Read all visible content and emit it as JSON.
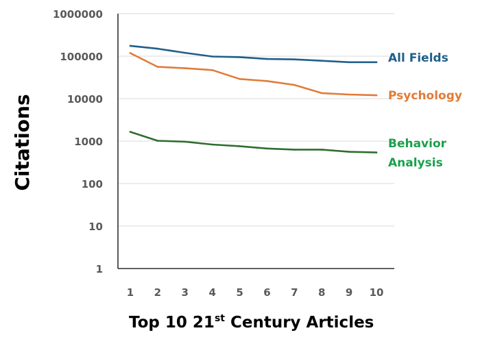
{
  "chart_data": {
    "type": "line",
    "title": "",
    "xlabel": {
      "main": "Top 10 21",
      "superscript": "st",
      "rest": " Century Articles"
    },
    "ylabel": "Citations",
    "y_scale": "log",
    "ylim": [
      1,
      1000000
    ],
    "y_ticks": [
      "1000000",
      "100000",
      "10000",
      "1000",
      "100",
      "10",
      "1"
    ],
    "x": [
      "1",
      "2",
      "3",
      "4",
      "5",
      "6",
      "7",
      "8",
      "9",
      "10"
    ],
    "grid": true,
    "legend": "inline-right",
    "series": [
      {
        "name": "All Fields",
        "color": "#1f5f8b",
        "values": [
          175000,
          150000,
          120000,
          98000,
          95000,
          86000,
          84000,
          78000,
          72000,
          72000
        ]
      },
      {
        "name": "Psychology",
        "color": "#e07b39",
        "values": [
          118000,
          56000,
          52000,
          47000,
          29000,
          26000,
          21000,
          13500,
          12500,
          12000
        ]
      },
      {
        "name": "Behavior Analysis",
        "name_lines": [
          "Behavior",
          "Analysis"
        ],
        "color": "#2e6e2e",
        "label_color": "#1aa04a",
        "values": [
          1650,
          1020,
          970,
          830,
          760,
          670,
          630,
          630,
          560,
          540
        ]
      }
    ]
  }
}
